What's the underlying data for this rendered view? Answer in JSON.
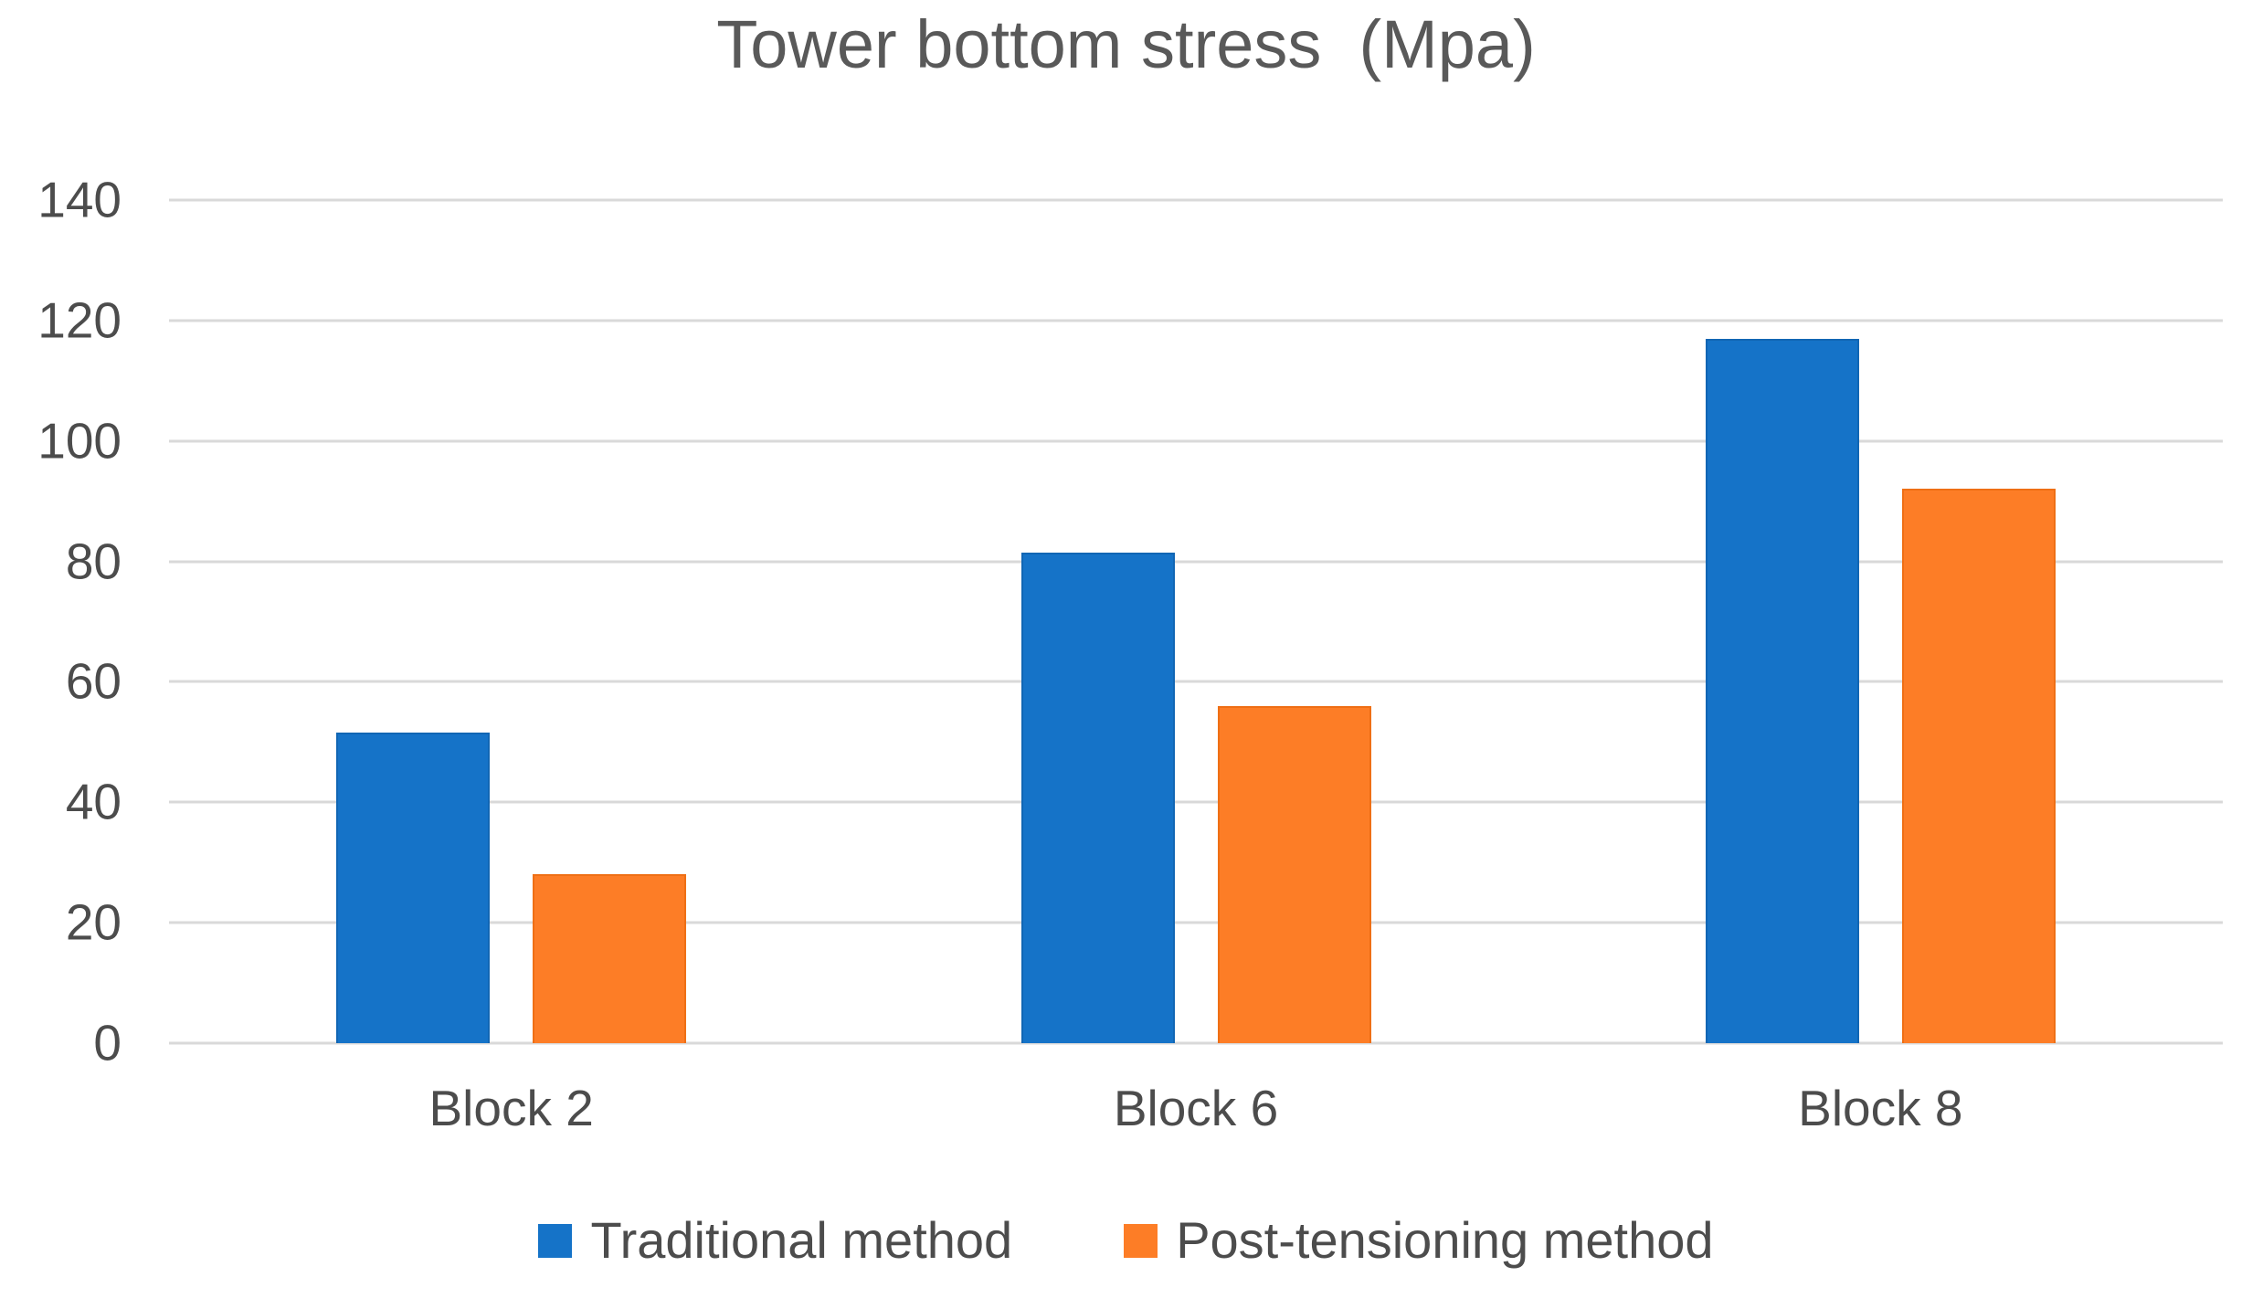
{
  "chart_data": {
    "type": "bar",
    "title": "Tower bottom stress  (Mpa)",
    "categories": [
      "Block 2",
      "Block 6",
      "Block 8"
    ],
    "series": [
      {
        "name": "Traditional method",
        "color": "#1573C8",
        "edge_color": "#1166B4",
        "values": [
          51.5,
          81.5,
          117
        ]
      },
      {
        "name": "Post-tensioning method",
        "color": "#FD7D26",
        "edge_color": "#EF6F15",
        "values": [
          28,
          56,
          92
        ]
      }
    ],
    "ylim": [
      0,
      140
    ],
    "yticks": [
      0,
      20,
      40,
      60,
      80,
      100,
      120,
      140
    ],
    "xlabel": "",
    "ylabel": "",
    "grid": true,
    "gridline_color": "#D9D9D9",
    "background_color": "#FFFFFF",
    "title_color": "#595959",
    "axis_text_color": "#4C4C4C",
    "legend_position": "bottom"
  }
}
